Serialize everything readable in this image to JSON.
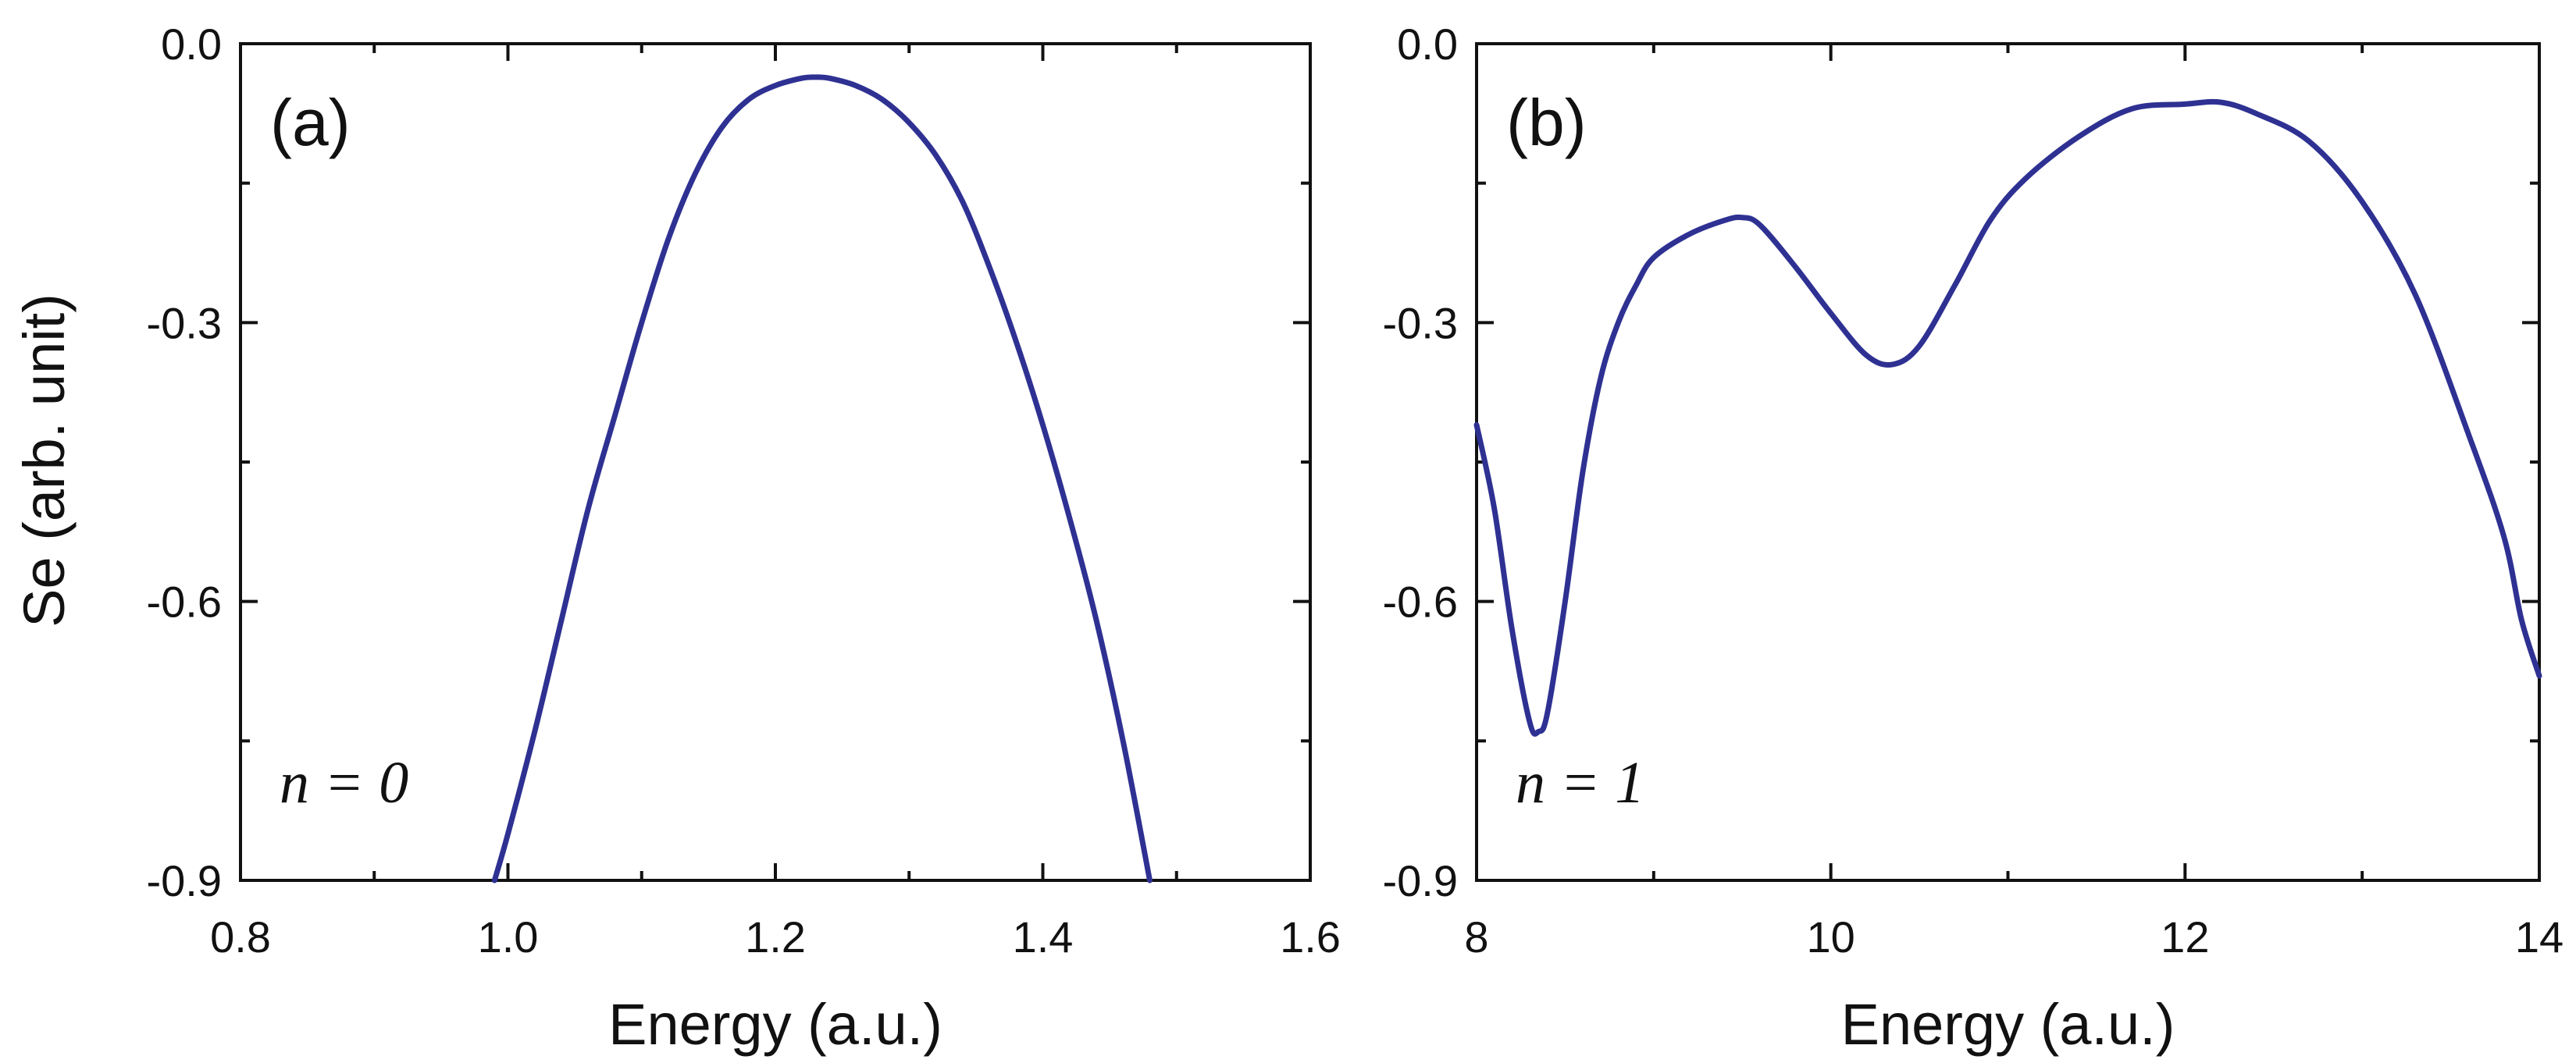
{
  "figure": {
    "ylabel": "Se (arb. unit)",
    "line_color": "#2e3192"
  },
  "chart_data": [
    {
      "type": "line",
      "panel_label": "(a)",
      "annotation": "n = 0",
      "xlabel": "Energy (a.u.)",
      "ylabel": "Se (arb. unit)",
      "xlim": [
        0.8,
        1.6
      ],
      "ylim": [
        -0.9,
        0.0
      ],
      "xticks": [
        "0.8",
        "1.0",
        "1.2",
        "1.4",
        "1.6"
      ],
      "yticks": [
        "0.0",
        "-0.3",
        "-0.6",
        "-0.9"
      ],
      "series": [
        {
          "x": [
            0.99,
            1.0,
            1.02,
            1.04,
            1.06,
            1.08,
            1.1,
            1.12,
            1.14,
            1.16,
            1.18,
            1.2,
            1.22,
            1.23,
            1.24,
            1.26,
            1.28,
            1.3,
            1.32,
            1.34,
            1.36,
            1.38,
            1.4,
            1.42,
            1.44,
            1.46,
            1.48
          ],
          "y": [
            -0.9,
            -0.85,
            -0.74,
            -0.62,
            -0.5,
            -0.4,
            -0.3,
            -0.21,
            -0.14,
            -0.09,
            -0.06,
            -0.045,
            -0.037,
            -0.036,
            -0.037,
            -0.045,
            -0.06,
            -0.085,
            -0.12,
            -0.17,
            -0.24,
            -0.32,
            -0.41,
            -0.51,
            -0.62,
            -0.75,
            -0.9
          ]
        }
      ]
    },
    {
      "type": "line",
      "panel_label": "(b)",
      "annotation": "n = 1",
      "xlabel": "Energy (a.u.)",
      "ylabel": "",
      "xlim": [
        8,
        14
      ],
      "ylim": [
        -0.9,
        0.0
      ],
      "xticks": [
        "8",
        "10",
        "12",
        "14"
      ],
      "yticks": [
        "0.0",
        "-0.3",
        "-0.6",
        "-0.9"
      ],
      "series": [
        {
          "x": [
            8.0,
            8.1,
            8.2,
            8.3,
            8.35,
            8.4,
            8.5,
            8.6,
            8.7,
            8.8,
            8.9,
            9.0,
            9.2,
            9.4,
            9.5,
            9.6,
            9.8,
            10.0,
            10.2,
            10.35,
            10.5,
            10.7,
            10.9,
            11.1,
            11.4,
            11.7,
            12.0,
            12.2,
            12.4,
            12.7,
            13.0,
            13.3,
            13.6,
            13.8,
            13.9,
            14.0
          ],
          "y": [
            -0.41,
            -0.5,
            -0.63,
            -0.73,
            -0.74,
            -0.72,
            -0.6,
            -0.46,
            -0.36,
            -0.3,
            -0.26,
            -0.23,
            -0.205,
            -0.19,
            -0.187,
            -0.195,
            -0.24,
            -0.29,
            -0.335,
            -0.345,
            -0.325,
            -0.26,
            -0.19,
            -0.145,
            -0.1,
            -0.07,
            -0.065,
            -0.063,
            -0.075,
            -0.105,
            -0.17,
            -0.27,
            -0.42,
            -0.53,
            -0.62,
            -0.68
          ]
        }
      ]
    }
  ]
}
